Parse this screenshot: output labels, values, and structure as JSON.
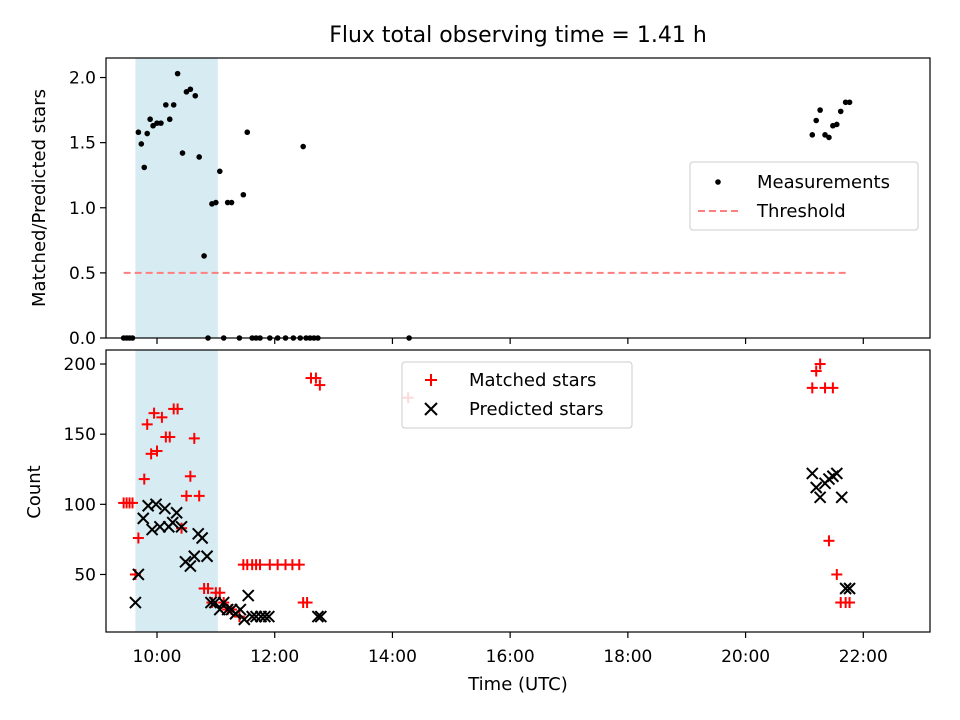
{
  "chart_data": [
    {
      "type": "scatter",
      "title": "Flux total observing time = 1.41 h",
      "xlabel": "",
      "ylabel": "Matched/Predicted stars",
      "xlim": [
        "09:08",
        "23:08"
      ],
      "ylim": [
        0,
        2.15
      ],
      "yticks": [
        0.0,
        0.5,
        1.0,
        1.5,
        2.0
      ],
      "ytick_labels": [
        "0.0",
        "0.5",
        "1.0",
        "1.5",
        "2.0"
      ],
      "shaded_span": [
        "09:38",
        "11:02"
      ],
      "shade_color": "#add8e6",
      "legend_loc": "center right",
      "series": [
        {
          "name": "Measurements",
          "marker": "dot",
          "color": "#000000",
          "x": [
            "09:26",
            "09:29",
            "09:32",
            "09:35",
            "09:41",
            "09:44",
            "09:47",
            "09:50",
            "09:53",
            "09:56",
            "10:00",
            "10:04",
            "10:09",
            "10:13",
            "10:17",
            "10:21",
            "10:26",
            "10:30",
            "10:34",
            "10:39",
            "10:43",
            "10:48",
            "10:52",
            "10:56",
            "11:00",
            "11:04",
            "11:08",
            "11:12",
            "11:16",
            "11:24",
            "11:28",
            "11:32",
            "11:37",
            "11:41",
            "11:45",
            "11:55",
            "12:03",
            "12:11",
            "12:19",
            "12:26",
            "12:29",
            "12:32",
            "12:36",
            "12:40",
            "12:44",
            "14:17",
            "21:08",
            "21:12",
            "21:16",
            "21:21",
            "21:25",
            "21:29",
            "21:33",
            "21:37",
            "21:42",
            "21:46"
          ],
          "y": [
            0,
            0,
            0,
            0,
            1.58,
            1.49,
            1.31,
            1.57,
            1.68,
            1.63,
            1.65,
            1.65,
            1.79,
            1.68,
            1.79,
            2.03,
            1.42,
            1.89,
            1.91,
            1.86,
            1.39,
            0.63,
            0,
            1.03,
            1.04,
            1.28,
            0,
            1.04,
            1.04,
            0,
            1.1,
            1.58,
            0,
            0,
            0,
            0,
            0,
            0,
            0,
            0,
            1.47,
            0,
            0,
            0,
            0,
            0,
            1.56,
            1.67,
            1.75,
            1.56,
            1.54,
            1.63,
            1.64,
            1.74,
            1.81,
            1.81
          ],
          "fixups": []
        },
        {
          "name": "Threshold",
          "style": "dashed",
          "color": "#ff7f7f",
          "x": [
            "09:26",
            "21:46"
          ],
          "y": [
            0.5,
            0.5
          ]
        }
      ]
    },
    {
      "type": "scatter",
      "title": "",
      "xlabel": "Time (UTC)",
      "ylabel": "Count",
      "xlim": [
        "09:08",
        "23:08"
      ],
      "ylim": [
        9,
        210
      ],
      "yticks": [
        50,
        100,
        150,
        200
      ],
      "ytick_labels": [
        "50",
        "100",
        "150",
        "200"
      ],
      "xticks": [
        "10:00",
        "12:00",
        "14:00",
        "16:00",
        "18:00",
        "20:00",
        "22:00"
      ],
      "xtick_labels": [
        "10:00",
        "12:00",
        "14:00",
        "16:00",
        "18:00",
        "20:00",
        "22:00"
      ],
      "shaded_span": [
        "09:38",
        "11:02"
      ],
      "shade_color": "#add8e6",
      "legend_loc": "upper center",
      "series": [
        {
          "name": "Matched stars",
          "marker": "plus",
          "color": "#ff0000",
          "x": [
            "09:26",
            "09:29",
            "09:32",
            "09:35",
            "09:38",
            "09:41",
            "09:47",
            "09:50",
            "09:54",
            "09:57",
            "10:00",
            "10:05",
            "10:09",
            "10:13",
            "10:17",
            "10:21",
            "10:25",
            "10:30",
            "10:34",
            "10:38",
            "10:43",
            "10:48",
            "10:52",
            "10:56",
            "11:00",
            "11:04",
            "11:08",
            "11:12",
            "11:16",
            "11:24",
            "11:28",
            "11:32",
            "11:37",
            "11:41",
            "11:45",
            "11:55",
            "12:03",
            "12:11",
            "12:18",
            "12:25",
            "12:29",
            "12:33",
            "12:37",
            "12:42",
            "12:46",
            "14:16",
            "21:08",
            "21:12",
            "21:16",
            "21:21",
            "21:25",
            "21:29",
            "21:33",
            "21:37",
            "21:42",
            "21:46"
          ],
          "y": [
            101,
            101,
            101,
            101,
            50,
            76,
            118,
            157,
            136,
            165,
            138,
            162,
            148,
            148,
            168,
            168,
            83,
            106,
            120,
            147,
            106,
            40,
            40,
            30,
            37,
            37,
            30,
            25,
            25,
            20,
            57,
            57,
            57,
            57,
            57,
            57,
            57,
            57,
            57,
            57,
            30,
            30,
            190,
            190,
            185,
            176,
            183,
            195,
            200,
            183,
            74,
            183,
            50,
            30,
            30,
            30
          ],
          "fixups": []
        },
        {
          "name": "Predicted stars",
          "marker": "x",
          "color": "#000000",
          "x": [
            "09:38",
            "09:41",
            "09:46",
            "09:51",
            "09:55",
            "09:59",
            "10:03",
            "10:08",
            "10:12",
            "10:16",
            "10:20",
            "10:25",
            "10:29",
            "10:34",
            "10:38",
            "10:42",
            "10:46",
            "10:51",
            "10:55",
            "10:59",
            "11:04",
            "11:08",
            "11:12",
            "11:16",
            "11:20",
            "11:25",
            "11:29",
            "11:33",
            "11:37",
            "11:41",
            "11:46",
            "11:50",
            "11:54",
            "12:44",
            "21:08",
            "21:12",
            "21:16",
            "21:21",
            "21:25",
            "21:29",
            "21:33",
            "21:38",
            "21:42",
            "21:46",
            "12:47"
          ],
          "y": [
            30,
            50,
            90,
            99,
            82,
            100,
            84,
            97,
            84,
            87,
            94,
            84,
            59,
            56,
            63,
            79,
            76,
            63,
            30,
            30,
            25,
            30,
            25,
            25,
            22,
            25,
            18,
            35,
            20,
            20,
            20,
            20,
            20,
            20,
            122,
            112,
            105,
            115,
            118,
            120,
            122,
            105,
            40,
            40,
            20
          ],
          "fixups": []
        }
      ]
    }
  ]
}
